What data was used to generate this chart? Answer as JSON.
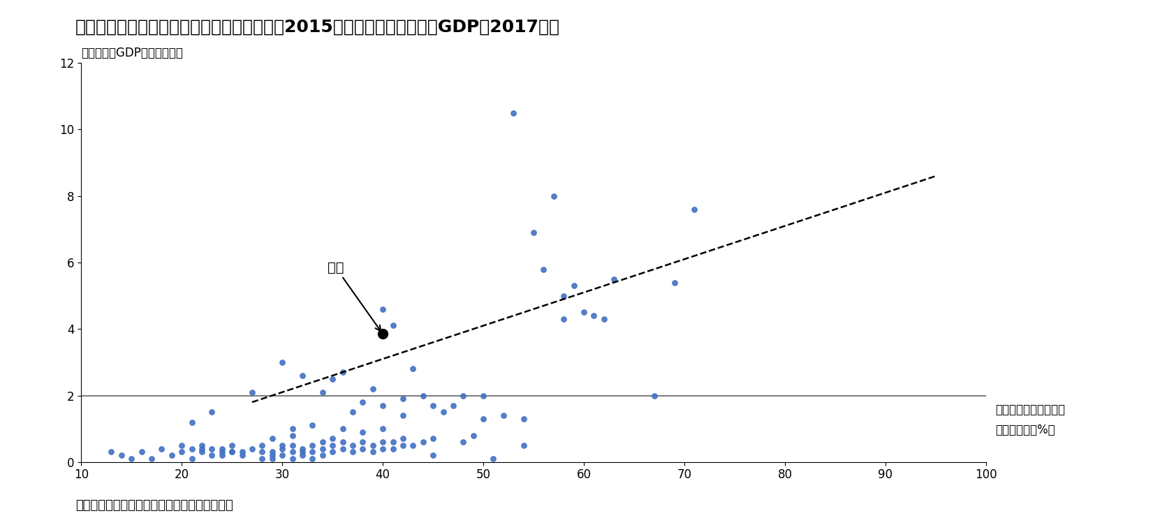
{
  "title": "図表１：金融リテラシーのある成人の割合（2015年）と一人当たり名目GDP（2017年）",
  "ylabel": "一人当たりGDP（万米ドル）",
  "xlabel_right1": "金融リテラシーのある",
  "xlabel_right2": "成人の割合（%）",
  "caption": "（資料：世界銀行とＳ＆Ｐのデータから作成）",
  "japan_label": "日本",
  "japan_point": [
    40,
    3.85
  ],
  "xlim": [
    10,
    100
  ],
  "ylim": [
    0,
    12
  ],
  "xticks": [
    10,
    20,
    30,
    40,
    50,
    60,
    70,
    80,
    90,
    100
  ],
  "yticks": [
    0,
    2,
    4,
    6,
    8,
    10,
    12
  ],
  "hline_y": 2.0,
  "trendline_x": [
    27,
    95
  ],
  "trendline_y": [
    1.8,
    8.6
  ],
  "scatter_color": "#4472C4",
  "scatter_data": [
    [
      13,
      0.3
    ],
    [
      14,
      0.2
    ],
    [
      15,
      0.1
    ],
    [
      16,
      0.3
    ],
    [
      17,
      0.1
    ],
    [
      18,
      0.4
    ],
    [
      19,
      0.2
    ],
    [
      20,
      0.5
    ],
    [
      20,
      0.3
    ],
    [
      21,
      0.1
    ],
    [
      21,
      0.4
    ],
    [
      21,
      1.2
    ],
    [
      22,
      0.4
    ],
    [
      22,
      0.5
    ],
    [
      22,
      0.3
    ],
    [
      23,
      0.2
    ],
    [
      23,
      0.4
    ],
    [
      23,
      1.5
    ],
    [
      24,
      0.3
    ],
    [
      24,
      0.4
    ],
    [
      24,
      0.2
    ],
    [
      25,
      0.3
    ],
    [
      25,
      0.5
    ],
    [
      25,
      0.3
    ],
    [
      26,
      0.2
    ],
    [
      26,
      0.3
    ],
    [
      27,
      0.4
    ],
    [
      27,
      2.1
    ],
    [
      28,
      0.1
    ],
    [
      28,
      0.3
    ],
    [
      28,
      0.5
    ],
    [
      29,
      0.3
    ],
    [
      29,
      0.2
    ],
    [
      29,
      0.7
    ],
    [
      29,
      0.1
    ],
    [
      30,
      0.2
    ],
    [
      30,
      0.4
    ],
    [
      30,
      0.5
    ],
    [
      30,
      3.0
    ],
    [
      31,
      0.1
    ],
    [
      31,
      0.3
    ],
    [
      31,
      0.5
    ],
    [
      31,
      0.8
    ],
    [
      31,
      1.0
    ],
    [
      32,
      0.2
    ],
    [
      32,
      0.3
    ],
    [
      32,
      0.4
    ],
    [
      32,
      2.6
    ],
    [
      33,
      0.1
    ],
    [
      33,
      0.3
    ],
    [
      33,
      0.5
    ],
    [
      33,
      1.1
    ],
    [
      34,
      0.2
    ],
    [
      34,
      0.4
    ],
    [
      34,
      0.6
    ],
    [
      34,
      2.1
    ],
    [
      35,
      0.3
    ],
    [
      35,
      0.5
    ],
    [
      35,
      0.7
    ],
    [
      35,
      2.5
    ],
    [
      36,
      0.4
    ],
    [
      36,
      0.6
    ],
    [
      36,
      1.0
    ],
    [
      36,
      2.7
    ],
    [
      37,
      0.3
    ],
    [
      37,
      0.5
    ],
    [
      37,
      1.5
    ],
    [
      38,
      0.4
    ],
    [
      38,
      0.6
    ],
    [
      38,
      0.9
    ],
    [
      38,
      1.8
    ],
    [
      39,
      0.3
    ],
    [
      39,
      0.5
    ],
    [
      39,
      2.2
    ],
    [
      40,
      0.4
    ],
    [
      40,
      0.6
    ],
    [
      40,
      1.0
    ],
    [
      40,
      1.7
    ],
    [
      40,
      4.6
    ],
    [
      41,
      0.4
    ],
    [
      41,
      0.6
    ],
    [
      41,
      4.1
    ],
    [
      42,
      0.5
    ],
    [
      42,
      0.7
    ],
    [
      42,
      1.4
    ],
    [
      42,
      1.9
    ],
    [
      43,
      0.5
    ],
    [
      43,
      2.8
    ],
    [
      44,
      0.6
    ],
    [
      44,
      2.0
    ],
    [
      45,
      0.7
    ],
    [
      45,
      1.7
    ],
    [
      45,
      0.2
    ],
    [
      46,
      1.5
    ],
    [
      47,
      1.7
    ],
    [
      48,
      2.0
    ],
    [
      48,
      0.6
    ],
    [
      49,
      0.8
    ],
    [
      50,
      1.3
    ],
    [
      50,
      2.0
    ],
    [
      51,
      0.1
    ],
    [
      52,
      1.4
    ],
    [
      53,
      10.5
    ],
    [
      54,
      0.5
    ],
    [
      54,
      1.3
    ],
    [
      55,
      6.9
    ],
    [
      56,
      5.8
    ],
    [
      57,
      8.0
    ],
    [
      58,
      5.0
    ],
    [
      58,
      4.3
    ],
    [
      59,
      5.3
    ],
    [
      60,
      4.5
    ],
    [
      61,
      4.4
    ],
    [
      62,
      4.3
    ],
    [
      63,
      5.5
    ],
    [
      67,
      2.0
    ],
    [
      69,
      5.4
    ],
    [
      71,
      7.6
    ]
  ],
  "scatter_size": 28,
  "hline_color": "#808080",
  "trendline_color": "#000000",
  "background_color": "#ffffff",
  "title_fontsize": 18,
  "label_fontsize": 12,
  "tick_fontsize": 12,
  "caption_fontsize": 13
}
